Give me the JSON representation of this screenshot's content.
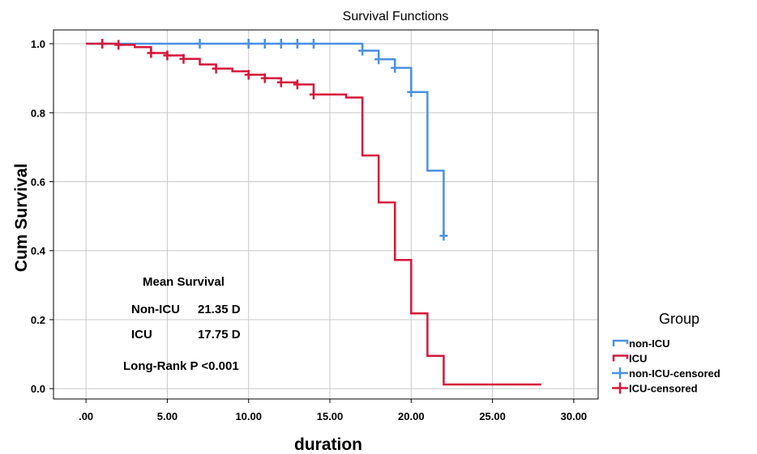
{
  "chart_data": {
    "type": "line",
    "subtype": "kaplan-meier step",
    "title": "Survival Functions",
    "xlabel": "duration",
    "ylabel": "Cum Survival",
    "xlim": [
      -2.0,
      31.5
    ],
    "ylim": [
      -0.03,
      1.04
    ],
    "x_ticks": [
      0,
      5,
      10,
      15,
      20,
      25,
      30
    ],
    "x_tick_labels": [
      ".00",
      "5.00",
      "10.00",
      "15.00",
      "20.00",
      "25.00",
      "30.00"
    ],
    "y_ticks": [
      0,
      0.2,
      0.4,
      0.6,
      0.8,
      1.0
    ],
    "y_tick_labels": [
      "0.0",
      "0.2",
      "0.4",
      "0.6",
      "0.8",
      "1.0"
    ],
    "grid": true,
    "legend_position": "right",
    "legend_title": "Group",
    "series": [
      {
        "name": "non-ICU",
        "color": "#4a90e2",
        "steps": [
          [
            0,
            1.0
          ],
          [
            17,
            0.98
          ],
          [
            18,
            0.955
          ],
          [
            19,
            0.93
          ],
          [
            20,
            0.86
          ],
          [
            21,
            0.632
          ],
          [
            22,
            0.443
          ]
        ],
        "end_x": 22
      },
      {
        "name": "ICU",
        "color": "#d7163a",
        "steps": [
          [
            0,
            1.0
          ],
          [
            2,
            0.997
          ],
          [
            3,
            0.99
          ],
          [
            4,
            0.973
          ],
          [
            5,
            0.966
          ],
          [
            6,
            0.956
          ],
          [
            7,
            0.94
          ],
          [
            8,
            0.928
          ],
          [
            9,
            0.92
          ],
          [
            10,
            0.91
          ],
          [
            11,
            0.9
          ],
          [
            12,
            0.888
          ],
          [
            13,
            0.882
          ],
          [
            14,
            0.853
          ],
          [
            16,
            0.844
          ],
          [
            17,
            0.676
          ],
          [
            18,
            0.54
          ],
          [
            19,
            0.373
          ],
          [
            20,
            0.218
          ],
          [
            21,
            0.095
          ],
          [
            22,
            0.012
          ]
        ],
        "end_x": 28
      }
    ],
    "censored": [
      {
        "name": "non-ICU-censored",
        "color": "#4a90e2",
        "x": [
          1,
          7,
          10,
          11,
          12,
          13,
          14,
          17,
          18,
          19,
          20,
          22
        ],
        "y": [
          1.0,
          1.0,
          1.0,
          1.0,
          1.0,
          1.0,
          1.0,
          0.98,
          0.955,
          0.93,
          0.86,
          0.443
        ]
      },
      {
        "name": "ICU-censored",
        "color": "#d7163a",
        "x": [
          1,
          2,
          4,
          5,
          6,
          8,
          10,
          11,
          12,
          13,
          14
        ],
        "y": [
          1.0,
          0.997,
          0.973,
          0.966,
          0.956,
          0.928,
          0.91,
          0.9,
          0.888,
          0.882,
          0.853
        ]
      }
    ],
    "annotation": {
      "heading": "Mean Survival",
      "row1_group": "Non-ICU",
      "row1_value": "21.35 D",
      "row2_group": "ICU",
      "row2_value": "17.75 D",
      "footer": "Long-Rank P <0.001"
    }
  }
}
